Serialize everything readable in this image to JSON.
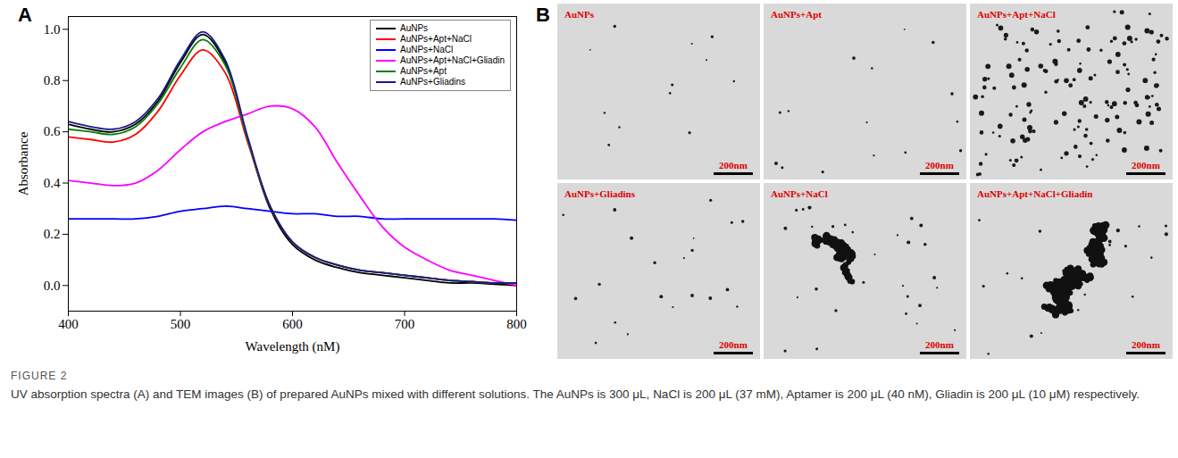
{
  "chart_data": {
    "type": "line",
    "panel_label": "A",
    "x_label": "Wavelength (nM)",
    "y_label": "Absorbance",
    "x": [
      400,
      420,
      440,
      460,
      480,
      500,
      520,
      540,
      560,
      580,
      600,
      620,
      640,
      660,
      680,
      700,
      720,
      740,
      760,
      780,
      800
    ],
    "series": [
      {
        "name": "AuNPs",
        "color": "#000000",
        "values": [
          0.63,
          0.61,
          0.6,
          0.63,
          0.72,
          0.87,
          0.98,
          0.87,
          0.57,
          0.3,
          0.16,
          0.1,
          0.07,
          0.05,
          0.04,
          0.03,
          0.02,
          0.01,
          0.01,
          0.005,
          0.0
        ]
      },
      {
        "name": "AuNPs+Apt+NaCl",
        "color": "#ff0000",
        "values": [
          0.58,
          0.57,
          0.56,
          0.59,
          0.68,
          0.82,
          0.92,
          0.83,
          0.56,
          0.31,
          0.17,
          0.11,
          0.08,
          0.06,
          0.05,
          0.04,
          0.03,
          0.02,
          0.015,
          0.01,
          0.01
        ]
      },
      {
        "name": "AuNPs+NaCl",
        "color": "#0000ff",
        "values": [
          0.26,
          0.26,
          0.26,
          0.26,
          0.27,
          0.29,
          0.3,
          0.31,
          0.3,
          0.29,
          0.28,
          0.28,
          0.27,
          0.27,
          0.26,
          0.26,
          0.26,
          0.26,
          0.26,
          0.26,
          0.255
        ]
      },
      {
        "name": "AuNPs+Apt+NaCl+Gliadin",
        "color": "#ff00ff",
        "values": [
          0.41,
          0.4,
          0.39,
          0.4,
          0.45,
          0.53,
          0.6,
          0.64,
          0.67,
          0.7,
          0.69,
          0.62,
          0.48,
          0.35,
          0.23,
          0.15,
          0.1,
          0.06,
          0.04,
          0.02,
          0.0
        ]
      },
      {
        "name": "AuNPs+Apt",
        "color": "#008000",
        "values": [
          0.61,
          0.6,
          0.59,
          0.62,
          0.71,
          0.85,
          0.96,
          0.86,
          0.57,
          0.31,
          0.17,
          0.11,
          0.08,
          0.06,
          0.05,
          0.04,
          0.03,
          0.02,
          0.015,
          0.01,
          0.01
        ]
      },
      {
        "name": "AuNPs+Gliadins",
        "color": "#1a1a8c",
        "values": [
          0.64,
          0.62,
          0.61,
          0.64,
          0.73,
          0.88,
          0.99,
          0.88,
          0.58,
          0.31,
          0.17,
          0.11,
          0.08,
          0.06,
          0.05,
          0.04,
          0.03,
          0.02,
          0.015,
          0.01,
          0.01
        ]
      }
    ],
    "xlim": [
      400,
      800
    ],
    "xticks": [
      400,
      500,
      600,
      700,
      800
    ],
    "ylim": [
      -0.1,
      1.05
    ],
    "yticks": [
      {
        "value": 0,
        "label": "0.0"
      },
      0.2,
      0.4,
      0.6,
      0.8,
      {
        "value": 1,
        "label": "1.0"
      }
    ],
    "legend": "upper right",
    "grid": false
  },
  "tem_images": {
    "panel_label": "B",
    "images": [
      {
        "label": "AuNPs",
        "scale_bar": "200nm"
      },
      {
        "label": "AuNPs+Apt",
        "scale_bar": "200nm"
      },
      {
        "label": "AuNPs+Apt+NaCl",
        "scale_bar": "200nm"
      },
      {
        "label": "AuNPs+Gliadins",
        "scale_bar": "200nm"
      },
      {
        "label": "AuNPs+NaCl",
        "scale_bar": "200nm"
      },
      {
        "label": "AuNPs+Apt+NaCl+Gliadin",
        "scale_bar": "200nm"
      }
    ]
  },
  "figure": {
    "label": "FIGURE 2",
    "caption": "UV absorption spectra (A) and TEM images (B) of prepared AuNPs mixed with different solutions. The AuNPs is 300 μL, NaCl is 200 μL (37 mM), Aptamer is 200 μL (40 nM), Gliadin is 200 μL (10 μM) respectively."
  }
}
